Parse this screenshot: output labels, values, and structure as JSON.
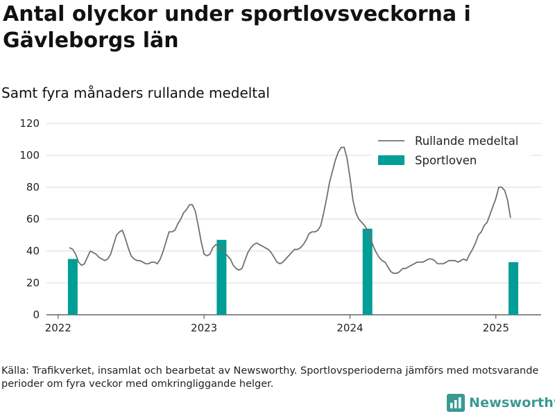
{
  "title": "Antal olyckor under sportlovsveckorna i Gävleborgs län",
  "subtitle": "Samt fyra månaders rullande medeltal",
  "source": "Källa: Trafikverket, insamlat och bearbetat av Newsworthy. Sportlovsperioderna jämförs med motsvarande perioder om fyra veckor med omkringliggande helger.",
  "brand": {
    "name": "Newsworthy",
    "icon": "newsworthy-logo-icon",
    "color": "#3a9a93"
  },
  "chart_data": {
    "type": "bar+line",
    "title": "Antal olyckor under sportlovsveckorna i Gävleborgs län",
    "subtitle": "Samt fyra månaders rullande medeltal",
    "xlabel": "",
    "ylabel": "",
    "ylim": [
      0,
      120
    ],
    "xlim": [
      2021.92,
      2025.31
    ],
    "yticks": [
      0,
      20,
      40,
      60,
      80,
      100,
      120
    ],
    "xticks": [
      2022,
      2023,
      2024,
      2025
    ],
    "xtick_labels": [
      "2022",
      "2023",
      "2024",
      "2025"
    ],
    "grid": true,
    "legend_position": "top-right",
    "bars": {
      "name": "Sportloven",
      "color": "#009e96",
      "x": [
        2022.1,
        2023.12,
        2024.12,
        2025.12
      ],
      "values": [
        35,
        47,
        54,
        33
      ]
    },
    "line": {
      "name": "Rullande medeltal",
      "color": "#707070",
      "x": [
        2022.08,
        2022.1,
        2022.12,
        2022.14,
        2022.16,
        2022.18,
        2022.2,
        2022.22,
        2022.24,
        2022.26,
        2022.28,
        2022.3,
        2022.32,
        2022.34,
        2022.36,
        2022.38,
        2022.4,
        2022.42,
        2022.44,
        2022.46,
        2022.48,
        2022.5,
        2022.52,
        2022.54,
        2022.56,
        2022.58,
        2022.6,
        2022.62,
        2022.64,
        2022.66,
        2022.68,
        2022.7,
        2022.72,
        2022.74,
        2022.76,
        2022.78,
        2022.8,
        2022.82,
        2022.84,
        2022.86,
        2022.88,
        2022.9,
        2022.92,
        2022.94,
        2022.96,
        2022.98,
        2023.0,
        2023.02,
        2023.04,
        2023.06,
        2023.08,
        2023.1,
        2023.12,
        2023.14,
        2023.16,
        2023.18,
        2023.2,
        2023.22,
        2023.24,
        2023.26,
        2023.28,
        2023.3,
        2023.32,
        2023.34,
        2023.36,
        2023.38,
        2023.4,
        2023.42,
        2023.44,
        2023.46,
        2023.48,
        2023.5,
        2023.52,
        2023.54,
        2023.56,
        2023.58,
        2023.6,
        2023.62,
        2023.64,
        2023.66,
        2023.68,
        2023.7,
        2023.72,
        2023.74,
        2023.76,
        2023.78,
        2023.8,
        2023.82,
        2023.84,
        2023.86,
        2023.88,
        2023.9,
        2023.92,
        2023.94,
        2023.96,
        2023.98,
        2024.0,
        2024.02,
        2024.04,
        2024.06,
        2024.08,
        2024.1,
        2024.12,
        2024.14,
        2024.16,
        2024.18,
        2024.2,
        2024.22,
        2024.24,
        2024.26,
        2024.28,
        2024.3,
        2024.32,
        2024.34,
        2024.36,
        2024.38,
        2024.4,
        2024.42,
        2024.44,
        2024.46,
        2024.48,
        2024.5,
        2024.52,
        2024.54,
        2024.56,
        2024.58,
        2024.6,
        2024.62,
        2024.64,
        2024.66,
        2024.68,
        2024.7,
        2024.72,
        2024.74,
        2024.76,
        2024.78,
        2024.8,
        2024.82,
        2024.84,
        2024.86,
        2024.88,
        2024.9,
        2024.92,
        2024.94,
        2024.96,
        2024.98,
        2025.0,
        2025.02,
        2025.04,
        2025.06,
        2025.08,
        2025.1
      ],
      "values": [
        42,
        41,
        38,
        33,
        31,
        32,
        36,
        40,
        39,
        38,
        36,
        35,
        34,
        35,
        38,
        44,
        50,
        52,
        53,
        48,
        42,
        37,
        35,
        34,
        34,
        33,
        32,
        32,
        33,
        33,
        32,
        35,
        40,
        46,
        52,
        52,
        53,
        57,
        60,
        64,
        66,
        69,
        69,
        65,
        56,
        46,
        38,
        37,
        38,
        42,
        44,
        43,
        42,
        39,
        37,
        35,
        31,
        29,
        28,
        29,
        34,
        39,
        42,
        44,
        45,
        44,
        43,
        42,
        41,
        39,
        36,
        33,
        32,
        33,
        35,
        37,
        39,
        41,
        41,
        42,
        44,
        47,
        51,
        52,
        52,
        53,
        56,
        64,
        73,
        83,
        90,
        97,
        102,
        105,
        105,
        98,
        86,
        72,
        64,
        60,
        58,
        56,
        53,
        48,
        43,
        39,
        36,
        34,
        33,
        30,
        27,
        26,
        26,
        27,
        29,
        29,
        30,
        31,
        32,
        33,
        33,
        33,
        34,
        35,
        35,
        34,
        32,
        32,
        32,
        33,
        34,
        34,
        34,
        33,
        34,
        35,
        34,
        38,
        41,
        45,
        50,
        52,
        56,
        58,
        63,
        68,
        73,
        80,
        80,
        78,
        72,
        61
      ]
    }
  }
}
